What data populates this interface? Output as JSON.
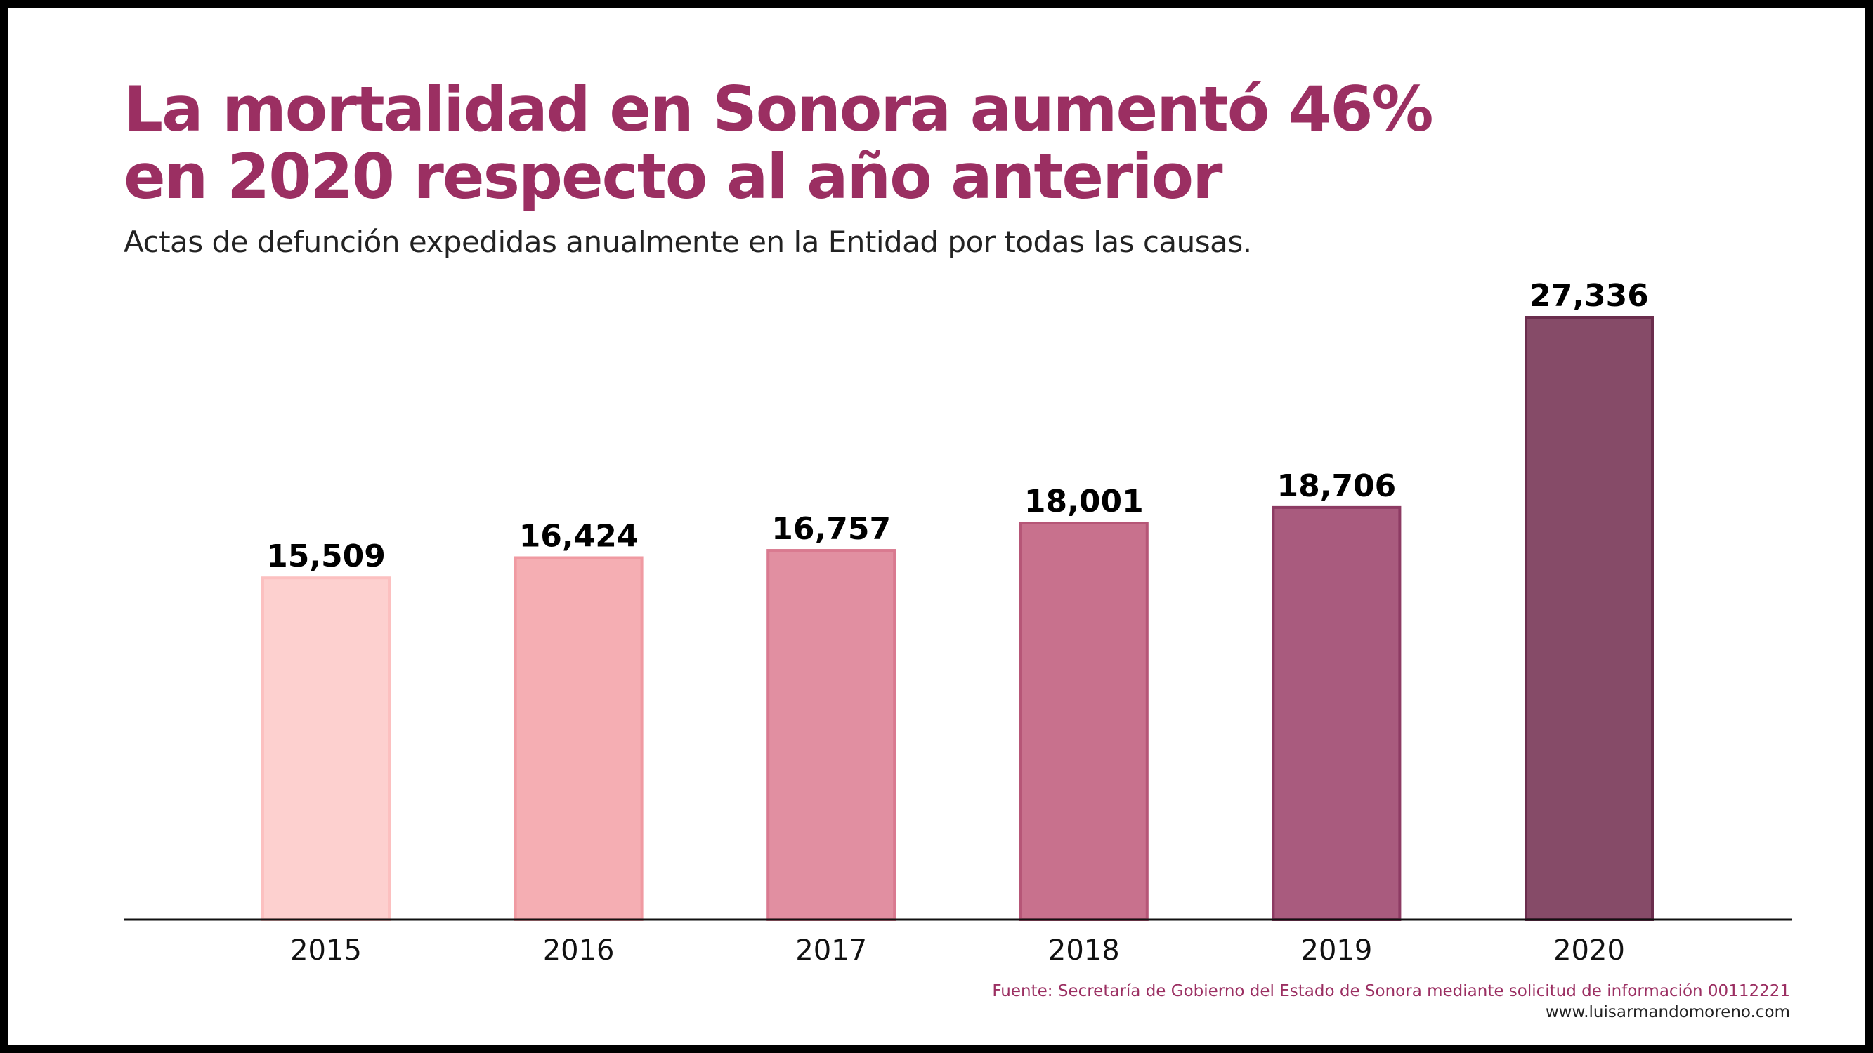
{
  "title_lines": [
    "La mortalidad en Sonora aumentó 46%",
    "en 2020 respecto al año anterior"
  ],
  "subtitle": "Actas de defunción expedidas anualmente en la Entidad por todas las causas.",
  "source": "Fuente: Secretaría de Gobierno del Estado de Sonora mediante solicitud de información 00112221",
  "website": "www.luisarmandomoreno.com",
  "colors": {
    "title": "#9b2f62",
    "source": "#9b2f62",
    "website": "#222222",
    "axis": "#111111"
  },
  "chart_data": {
    "type": "bar",
    "categories": [
      "2015",
      "2016",
      "2017",
      "2018",
      "2019",
      "2020"
    ],
    "values": [
      15509,
      16424,
      16757,
      18001,
      18706,
      27336
    ],
    "value_labels": [
      "15,509",
      "16,424",
      "16,757",
      "18,001",
      "18,706",
      "27,336"
    ],
    "bar_colors": [
      "#fdd0cf",
      "#f5aeb3",
      "#e18fa1",
      "#c8718d",
      "#a95b7e",
      "#864b68"
    ],
    "bar_edge_colors": [
      "#fcc0c0",
      "#f09aa2",
      "#d97a90",
      "#b65677",
      "#8d3b63",
      "#6b2d4d"
    ],
    "ylim": [
      0,
      27336
    ],
    "grid": false,
    "legend": "none",
    "xlabel": "",
    "ylabel": ""
  }
}
